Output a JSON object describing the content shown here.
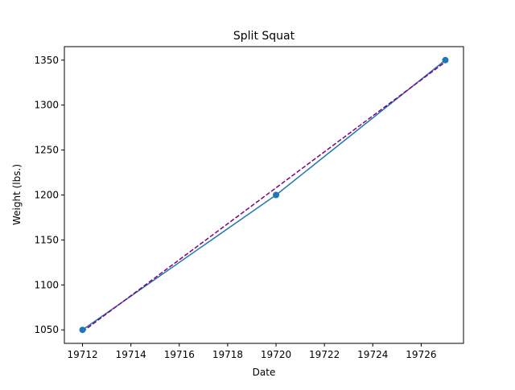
{
  "chart_data": {
    "type": "line",
    "title": "Split Squat",
    "xlabel": "Date",
    "ylabel": "Weight (lbs.)",
    "xlim": [
      19711.25,
      19727.75
    ],
    "ylim": [
      1035,
      1365
    ],
    "xticks": [
      19712,
      19714,
      19716,
      19718,
      19720,
      19722,
      19724,
      19726
    ],
    "yticks": [
      1050,
      1100,
      1150,
      1200,
      1250,
      1300,
      1350
    ],
    "grid": false,
    "series": [
      {
        "kind": "line-with-markers",
        "color": "#1f77b4",
        "x": [
          19712,
          19720,
          19727
        ],
        "y": [
          1050,
          1200,
          1350
        ]
      },
      {
        "kind": "dashed-fit",
        "color": "#800080",
        "x": [
          19712,
          19727
        ],
        "y": [
          1048,
          1348
        ]
      }
    ]
  }
}
